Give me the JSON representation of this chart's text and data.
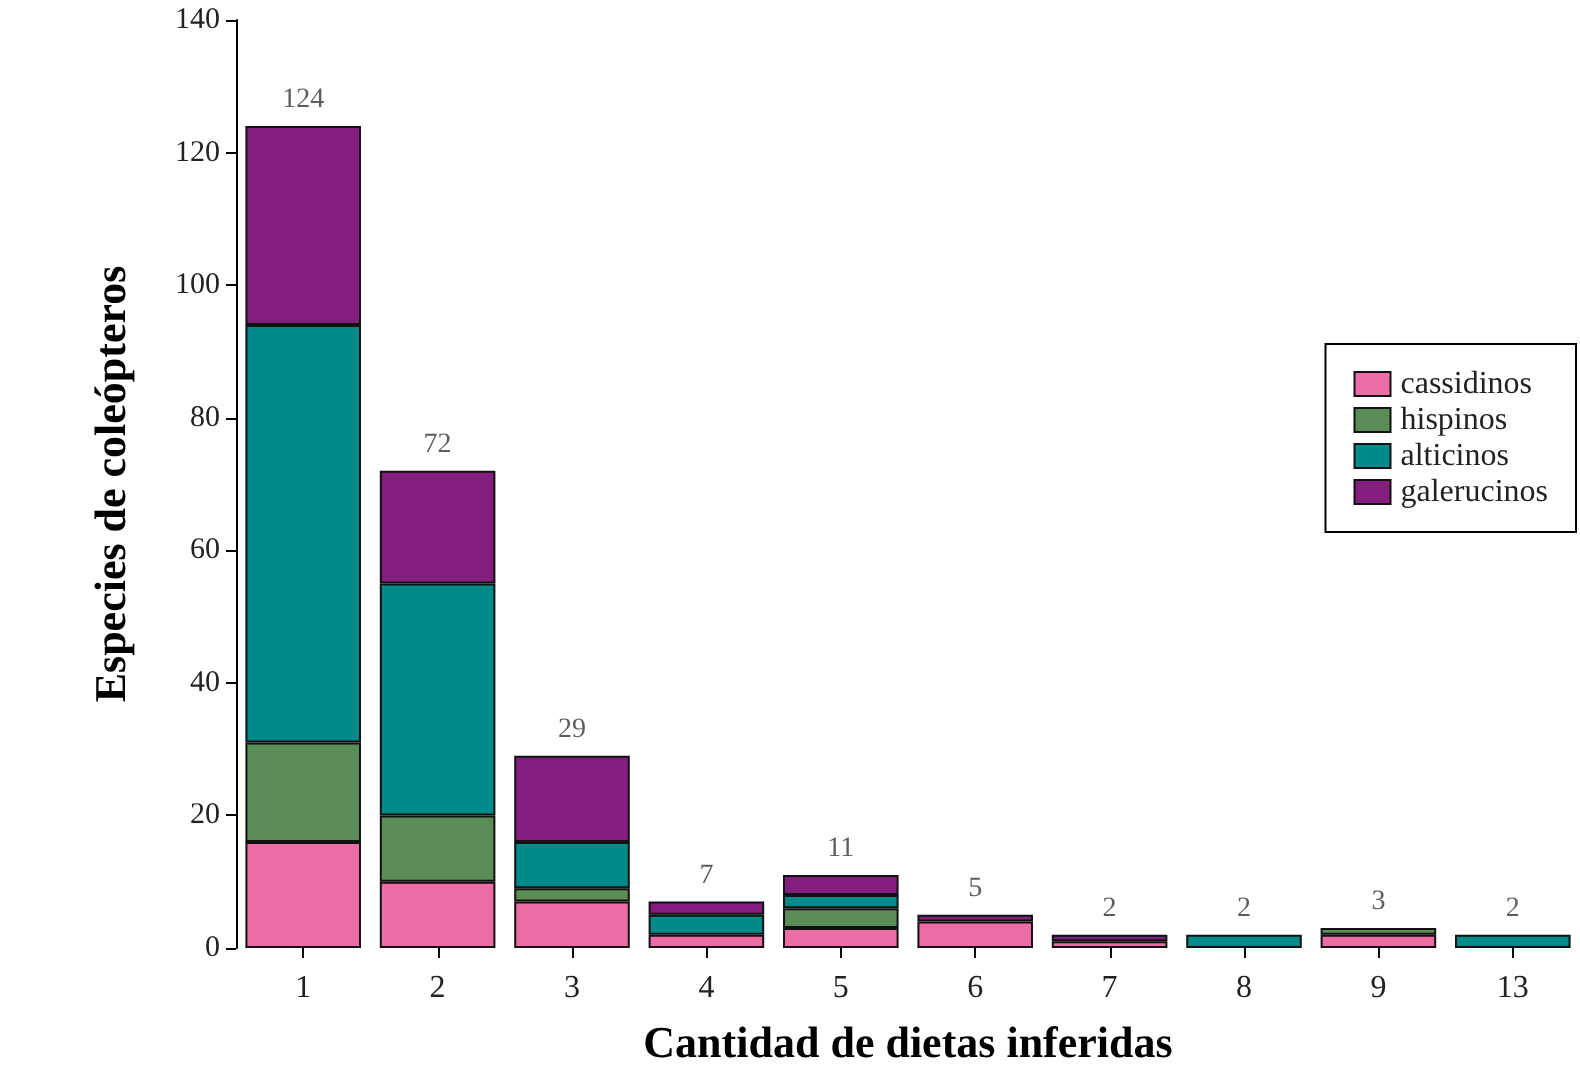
{
  "chart_data": {
    "type": "bar",
    "stacked": true,
    "xlabel": "Cantidad de dietas inferidas",
    "ylabel": "Especies de coleópteros",
    "categories": [
      "1",
      "2",
      "3",
      "4",
      "5",
      "6",
      "7",
      "8",
      "9",
      "13"
    ],
    "series": [
      {
        "name": "cassidinos",
        "color": "#ec6ca4",
        "values": [
          16,
          10,
          7,
          2,
          3,
          4,
          1,
          0,
          2,
          0
        ]
      },
      {
        "name": "hispinos",
        "color": "#5a8c55",
        "values": [
          15,
          10,
          2,
          0,
          3,
          0,
          0,
          0,
          1,
          0
        ]
      },
      {
        "name": "alticinos",
        "color": "#008b8a",
        "values": [
          63,
          35,
          7,
          3,
          2,
          0,
          0,
          2,
          0,
          2
        ]
      },
      {
        "name": "galerucinos",
        "color": "#841e7e",
        "values": [
          30,
          17,
          13,
          2,
          3,
          1,
          1,
          0,
          0,
          0
        ]
      }
    ],
    "totals": [
      "124",
      "72",
      "29",
      "7",
      "11",
      "5",
      "2",
      "2",
      "3",
      "2"
    ],
    "ylim": [
      0,
      140
    ],
    "yticks": [
      0,
      20,
      40,
      60,
      80,
      100,
      120,
      140
    ],
    "grid": false,
    "legend": "right"
  }
}
